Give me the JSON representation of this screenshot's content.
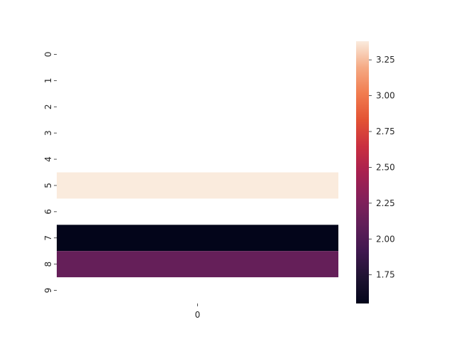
{
  "chart_data": {
    "type": "heatmap",
    "title": "",
    "xlabel": "",
    "ylabel": "",
    "x_categories": [
      "0"
    ],
    "y_categories": [
      "0",
      "1",
      "2",
      "3",
      "4",
      "5",
      "6",
      "7",
      "8",
      "9"
    ],
    "values": [
      [
        null
      ],
      [
        null
      ],
      [
        null
      ],
      [
        null
      ],
      [
        null
      ],
      [
        3.38
      ],
      [
        null
      ],
      [
        1.55
      ],
      [
        2.12
      ],
      [
        null
      ]
    ],
    "colorbar": {
      "min": 1.55,
      "max": 3.38,
      "ticks": [
        1.75,
        2.0,
        2.25,
        2.5,
        2.75,
        3.0,
        3.25
      ],
      "tick_labels": [
        "1.75",
        "2.00",
        "2.25",
        "2.50",
        "2.75",
        "3.00",
        "3.25"
      ],
      "colormap": "rocket"
    },
    "missing_color": "#ffffff",
    "grid": false
  }
}
